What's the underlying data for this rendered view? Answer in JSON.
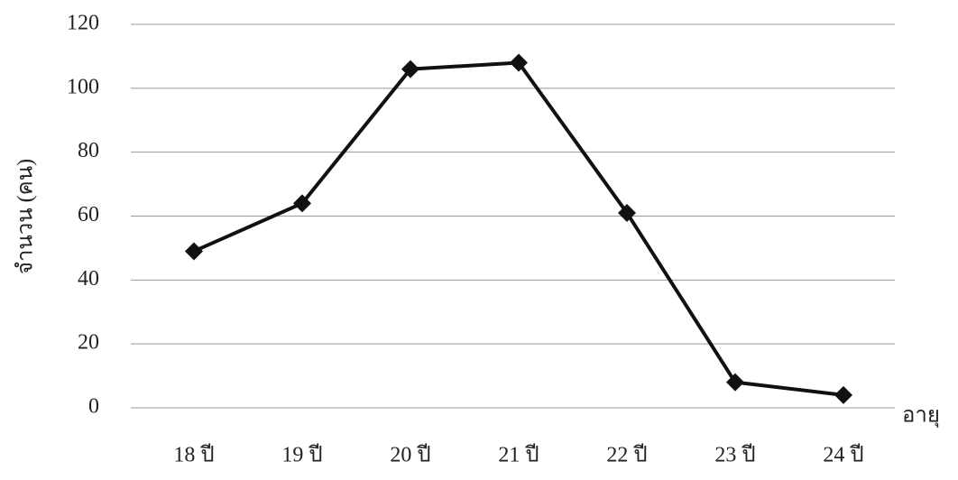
{
  "chart_data": {
    "type": "line",
    "x_label": "อายุ",
    "y_label": "จำนวน (คน)",
    "categories": [
      "18 ปี",
      "19 ปี",
      "20 ปี",
      "21 ปี",
      "22 ปี",
      "23 ปี",
      "24 ปี"
    ],
    "series": [
      {
        "color": "#111111",
        "values": [
          49,
          64,
          106,
          108,
          61,
          8,
          4
        ]
      }
    ],
    "ylim": [
      0,
      120
    ],
    "yticks": [
      0,
      20,
      40,
      60,
      80,
      100,
      120
    ],
    "grid": true
  }
}
